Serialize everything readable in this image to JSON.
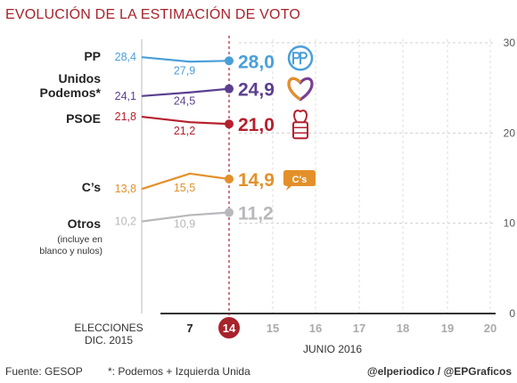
{
  "title": "EVOLUCIÓN DE LA ESTIMACIÓN DE VOTO",
  "chart_data": {
    "type": "line",
    "title": "EVOLUCIÓN DE LA ESTIMACIÓN DE VOTO",
    "ylim": [
      0,
      30
    ],
    "yticks": [
      "0",
      "10",
      "20",
      "30"
    ],
    "grid": true,
    "x_categories": [
      "ELECCIONES DIC. 2015",
      "7",
      "14",
      "15",
      "16",
      "17",
      "18",
      "19",
      "20"
    ],
    "x_label_left_1": "ELECCIONES",
    "x_label_left_2": "DIC. 2015",
    "x_month_label": "JUNIO 2016",
    "current_day": "14",
    "series": [
      {
        "name": "PP",
        "values": [
          28.4,
          27.9,
          28.0
        ],
        "labels": [
          "28,4",
          "27,9",
          "28,0"
        ],
        "color": "#4a9fd8",
        "icon": "pp-logo-icon"
      },
      {
        "name": "Unidos Podemos*",
        "name_line1": "Unidos",
        "name_line2": "Podemos*",
        "values": [
          24.1,
          24.5,
          24.9
        ],
        "labels": [
          "24,1",
          "24,5",
          "24,9"
        ],
        "color": "#5b3f8f",
        "icon": "heart-logo-icon"
      },
      {
        "name": "PSOE",
        "values": [
          21.8,
          21.2,
          21.0
        ],
        "labels": [
          "21,8",
          "21,2",
          "21,0"
        ],
        "color": "#b5202e",
        "icon": "rose-fist-logo-icon"
      },
      {
        "name": "C’s",
        "values": [
          13.8,
          15.5,
          14.9
        ],
        "labels": [
          "13,8",
          "15,5",
          "14,9"
        ],
        "color": "#e3902a",
        "icon": "cs-logo-icon",
        "logo_text": "C's"
      },
      {
        "name": "Otros",
        "note_line1": "(incluye en",
        "note_line2": "blanco y nulos)",
        "values": [
          10.2,
          10.9,
          11.2
        ],
        "labels": [
          "10,2",
          "10,9",
          "11,2"
        ],
        "color": "#b8b8bc"
      }
    ]
  },
  "footer": {
    "source": "Fuente: GESOP",
    "note": "*: Podemos + Izquierda Unida",
    "credit": "@elperiodico / @EPGraficos"
  }
}
